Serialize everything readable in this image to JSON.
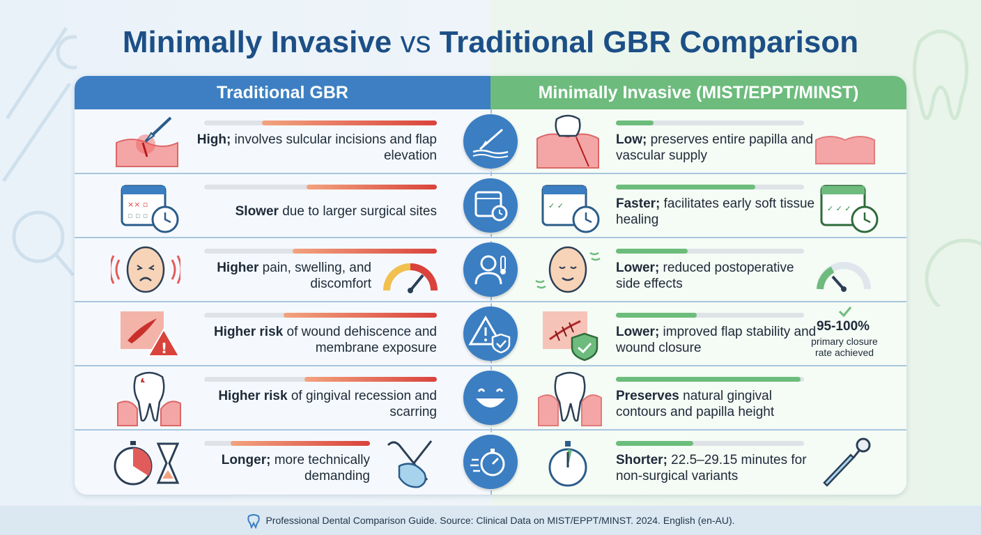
{
  "title": {
    "part1": "Minimally Invasive",
    "vs": "vs",
    "part2": "Traditional GBR Comparison"
  },
  "columns": {
    "left": "Traditional GBR",
    "right": "Minimally Invasive (MIST/EPPT/MINST)"
  },
  "rows": [
    {
      "left_bold": "High;",
      "left_rest": " involves sulcular incisions and flap elevation",
      "left_level": 0.75,
      "right_bold": "Low;",
      "right_rest": " preserves entire papilla and vascular supply",
      "right_level": 0.2,
      "center_icon": "scalpel-icon"
    },
    {
      "left_bold": "Slower",
      "left_rest": " due to larger surgical sites",
      "left_level": 0.56,
      "right_bold": "Faster;",
      "right_rest": " facilitates early soft tissue healing",
      "right_level": 0.74,
      "center_icon": "calendar-clock-icon"
    },
    {
      "left_bold": "Higher",
      "left_rest": " pain, swelling, and discomfort",
      "left_level": 0.62,
      "right_bold": "Lower;",
      "right_rest": " reduced postoperative side effects",
      "right_level": 0.38,
      "center_icon": "patient-thermometer-icon"
    },
    {
      "left_bold": "Higher risk",
      "left_rest": " of wound dehiscence and membrane exposure",
      "left_level": 0.66,
      "right_bold": "Lower;",
      "right_rest": " improved flap stability and wound closure",
      "right_level": 0.43,
      "center_icon": "warning-shield-icon"
    },
    {
      "left_bold": "Higher risk",
      "left_rest": " of gingival recession and scarring",
      "left_level": 0.57,
      "right_bold": "Preserves",
      "right_rest": " natural gingival contours and papilla height",
      "right_level": 0.98,
      "center_icon": "smile-icon"
    },
    {
      "left_bold": "Longer;",
      "left_rest": " more technically demanding",
      "left_level": 0.84,
      "right_bold": "Shorter;",
      "right_rest": " 22.5–29.15 minutes for non-surgical variants",
      "right_level": 0.41,
      "center_icon": "stopwatch-icon"
    }
  ],
  "stat": {
    "value": "95-100%",
    "caption": "primary closure rate achieved"
  },
  "footer": "Professional Dental Comparison Guide. Source: Clinical Data on MIST/EPPT/MINST. 2024. English (en-AU).",
  "colors": {
    "title": "#1c4f86",
    "left_header": "#3d7fc2",
    "right_header": "#6dbb7d",
    "center_icon_bg": "#3b7ec2",
    "bar_red": "#d9433c",
    "bar_green": "#6cbd7b"
  }
}
